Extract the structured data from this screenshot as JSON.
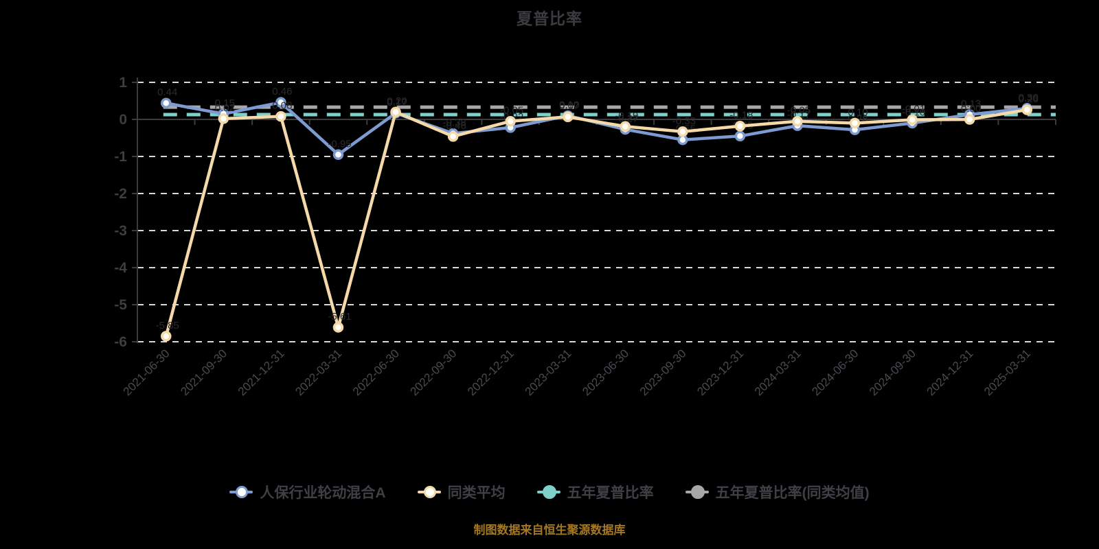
{
  "title": "夏普比率",
  "footer": "制图数据来自恒生聚源数据库",
  "colors": {
    "background": "#000000",
    "grid_dashed": "#d9d9d9",
    "axis_line": "#3c3c3e",
    "y_label": "#3d3d42",
    "x_label": "#4a4a50",
    "data_label": "#2b2b2d",
    "title_text": "#3c3c40",
    "legend_text": "#3f3f46",
    "footer_text": "#a5781f",
    "series_fund": "#7d9bd1",
    "series_peer": "#f5d9a8",
    "series_5y": "#7ed0ca",
    "series_5y_peer": "#a7a7a7"
  },
  "legend": {
    "items": [
      {
        "label": "人保行业轮动混合A",
        "color": "#7d9bd1",
        "fill": "hollow"
      },
      {
        "label": "同类平均",
        "color": "#f5d9a8",
        "fill": "hollow"
      },
      {
        "label": "五年夏普比率",
        "color": "#7ed0ca",
        "fill": "solid"
      },
      {
        "label": "五年夏普比率(同类均值)",
        "color": "#a7a7a7",
        "fill": "solid"
      }
    ]
  },
  "chart_data": {
    "type": "line",
    "title": "夏普比率",
    "xlabel": "",
    "ylabel": "",
    "ylim": [
      -6,
      1
    ],
    "yticks": [
      1,
      0,
      -1,
      -2,
      -3,
      -4,
      -5,
      -6
    ],
    "grid": "horizontal-dashed",
    "legend_position": "bottom",
    "categories": [
      "2021-06-30",
      "2021-09-30",
      "2021-12-31",
      "2022-03-31",
      "2022-06-30",
      "2022-09-30",
      "2022-12-31",
      "2023-03-31",
      "2023-06-30",
      "2023-09-30",
      "2023-12-31",
      "2024-03-31",
      "2024-06-30",
      "2024-09-30",
      "2024-12-31",
      "2025-03-31"
    ],
    "series": [
      {
        "name": "人保行业轮动混合A",
        "kind": "line",
        "color": "#7d9bd1",
        "marker": "hollow-circle",
        "values": [
          0.44,
          0.15,
          0.46,
          -0.95,
          0.17,
          -0.38,
          -0.22,
          0.1,
          -0.27,
          -0.55,
          -0.45,
          -0.17,
          -0.28,
          -0.1,
          0.13,
          0.3
        ]
      },
      {
        "name": "同类平均",
        "kind": "line",
        "color": "#f5d9a8",
        "marker": "hollow-circle",
        "values": [
          -5.85,
          0.02,
          0.08,
          -5.61,
          0.2,
          -0.46,
          -0.05,
          0.07,
          -0.19,
          -0.33,
          -0.18,
          -0.05,
          -0.1,
          -0.01,
          0.0,
          0.26
        ]
      },
      {
        "name": "五年夏普比率",
        "kind": "horizontal-dashed",
        "color": "#7ed0ca",
        "value": 0.13
      },
      {
        "name": "五年夏普比率(同类均值)",
        "kind": "horizontal-dashed",
        "color": "#a7a7a7",
        "value": 0.33
      }
    ]
  }
}
